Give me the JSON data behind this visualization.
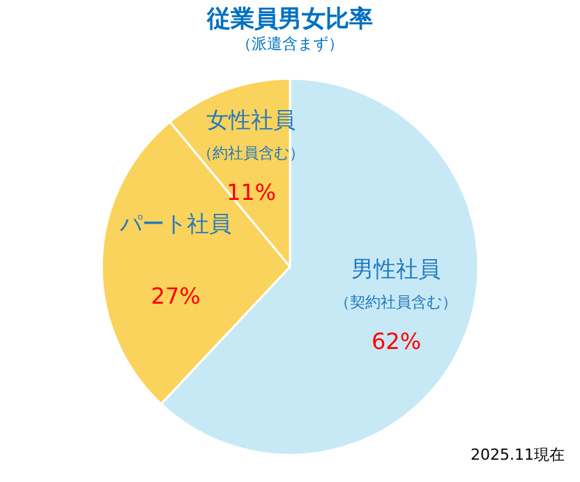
{
  "chart_data": {
    "type": "pie",
    "title": "従業員男女比率",
    "subtitle": "（派遣含まず）",
    "categories": [
      "男性社員",
      "パート社員",
      "女性社員"
    ],
    "values": [
      62,
      27,
      11
    ],
    "colors": [
      "#c7e9f5",
      "#f9d35c",
      "#f9d35c"
    ],
    "value_labels": [
      "62%",
      "27%",
      "11%"
    ],
    "annotations": [
      "（契約社員含む）",
      "（約社員含む）",
      "2025.11現在"
    ]
  }
}
